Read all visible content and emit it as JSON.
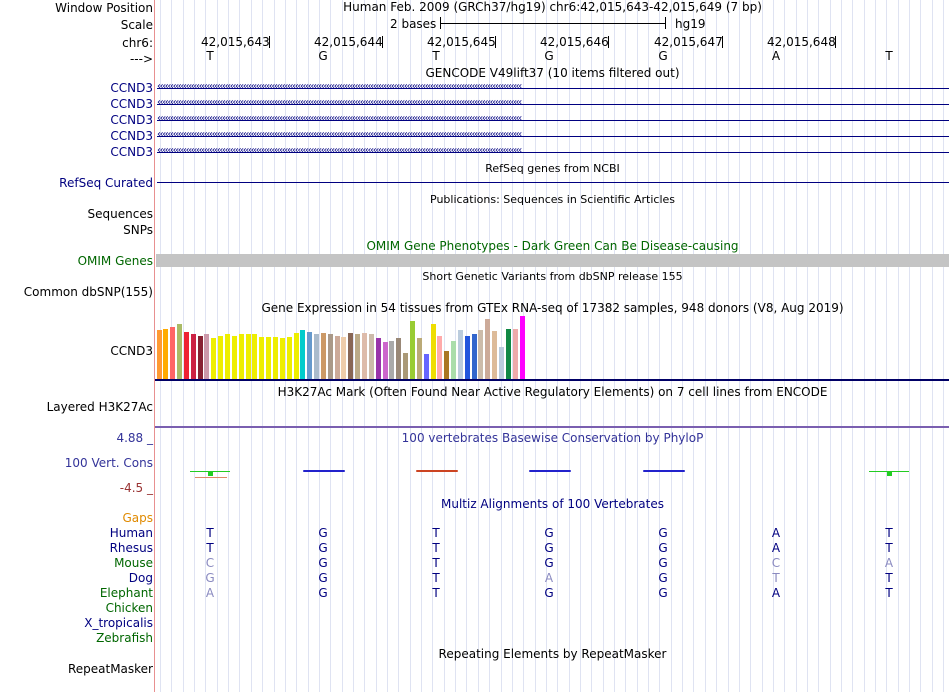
{
  "header": {
    "window_position_label": "Window Position",
    "scale_label": "Scale",
    "chrom_label": "chr6:",
    "strand_label": "--->",
    "assembly_text": "Human Feb. 2009 (GRCh37/hg19)   chr6:42,015,643-42,015,649 (7 bp)",
    "scale_text": "2 bases",
    "db_text": "hg19",
    "positions": [
      "42,015,643",
      "42,015,644",
      "42,015,645",
      "42,015,646",
      "42,015,647",
      "42,015,648"
    ],
    "bases": [
      "T",
      "G",
      "T",
      "G",
      "G",
      "A",
      "T"
    ]
  },
  "gencode": {
    "title": "GENCODE V49lift37 (10 items filtered out)",
    "genes": [
      "CCND3",
      "CCND3",
      "CCND3",
      "CCND3",
      "CCND3"
    ]
  },
  "refseq": {
    "title": "RefSeq genes from NCBI",
    "label": "RefSeq Curated"
  },
  "publications": {
    "title": "Publications: Sequences in Scientific Articles",
    "labels": [
      "Sequences",
      "SNPs"
    ]
  },
  "omim": {
    "title": "OMIM Gene Phenotypes - Dark Green Can Be Disease-causing",
    "label": "OMIM Genes"
  },
  "dbsnp": {
    "title": "Short Genetic Variants from dbSNP release 155",
    "label": "Common dbSNP(155)"
  },
  "gtex": {
    "title": "Gene Expression in 54 tissues from GTEx RNA-seq of 17382 samples, 948 donors (V8, Aug 2019)",
    "label": "CCND3",
    "bars": [
      {
        "v": 0.77,
        "c": "#ff9933"
      },
      {
        "v": 0.8,
        "c": "#ffaa00"
      },
      {
        "v": 0.83,
        "c": "#ff6666"
      },
      {
        "v": 0.87,
        "c": "#aabb66"
      },
      {
        "v": 0.74,
        "c": "#ee2233"
      },
      {
        "v": 0.72,
        "c": "#cc2244"
      },
      {
        "v": 0.69,
        "c": "#882233"
      },
      {
        "v": 0.71,
        "c": "#cc99aa"
      },
      {
        "v": 0.65,
        "c": "#eeee00"
      },
      {
        "v": 0.68,
        "c": "#eeee00"
      },
      {
        "v": 0.71,
        "c": "#eeee00"
      },
      {
        "v": 0.69,
        "c": "#eeee00"
      },
      {
        "v": 0.71,
        "c": "#eeee00"
      },
      {
        "v": 0.71,
        "c": "#eeee00"
      },
      {
        "v": 0.71,
        "c": "#eeee00"
      },
      {
        "v": 0.67,
        "c": "#eeee00"
      },
      {
        "v": 0.66,
        "c": "#eeee00"
      },
      {
        "v": 0.66,
        "c": "#eeee00"
      },
      {
        "v": 0.65,
        "c": "#eeee00"
      },
      {
        "v": 0.67,
        "c": "#eeee00"
      },
      {
        "v": 0.73,
        "c": "#eeee00"
      },
      {
        "v": 0.77,
        "c": "#00cccc"
      },
      {
        "v": 0.75,
        "c": "#6699cc"
      },
      {
        "v": 0.71,
        "c": "#aabbcc"
      },
      {
        "v": 0.73,
        "c": "#cc9966"
      },
      {
        "v": 0.71,
        "c": "#aa9988"
      },
      {
        "v": 0.69,
        "c": "#ccaa99"
      },
      {
        "v": 0.66,
        "c": "#eeccaa"
      },
      {
        "v": 0.73,
        "c": "#886655"
      },
      {
        "v": 0.71,
        "c": "#bbaa88"
      },
      {
        "v": 0.73,
        "c": "#ddbbaa"
      },
      {
        "v": 0.71,
        "c": "#ccbbaa"
      },
      {
        "v": 0.65,
        "c": "#9933aa"
      },
      {
        "v": 0.59,
        "c": "#cc66cc"
      },
      {
        "v": 0.61,
        "c": "#aaaaaa"
      },
      {
        "v": 0.65,
        "c": "#998877"
      },
      {
        "v": 0.41,
        "c": "#aa9977"
      },
      {
        "v": 0.92,
        "c": "#99cc33"
      },
      {
        "v": 0.65,
        "c": "#bbaa77"
      },
      {
        "v": 0.4,
        "c": "#6666ff"
      },
      {
        "v": 0.88,
        "c": "#eedd00"
      },
      {
        "v": 0.68,
        "c": "#ffaaaa"
      },
      {
        "v": 0.45,
        "c": "#aa7722"
      },
      {
        "v": 0.6,
        "c": "#aaddaa"
      },
      {
        "v": 0.77,
        "c": "#bbccdd"
      },
      {
        "v": 0.69,
        "c": "#2255dd"
      },
      {
        "v": 0.72,
        "c": "#3366cc"
      },
      {
        "v": 0.77,
        "c": "#ccbbaa"
      },
      {
        "v": 0.96,
        "c": "#ccaa99"
      },
      {
        "v": 0.76,
        "c": "#ddbb99"
      },
      {
        "v": 0.51,
        "c": "#bbccdd"
      },
      {
        "v": 0.79,
        "c": "#118844"
      },
      {
        "v": 0.79,
        "c": "#eeaaaa"
      },
      {
        "v": 1.0,
        "c": "#ff00ff"
      }
    ]
  },
  "h3k27ac": {
    "title": "H3K27Ac Mark (Often Found Near Active Regulatory Elements) on 7 cell lines from ENCODE",
    "label": "Layered H3K27Ac"
  },
  "conservation": {
    "title": "100 vertebrates Basewise Conservation by PhyloP",
    "label": "100 Vert. Cons",
    "max_label": "4.88 _",
    "min_label": "-4.5 _",
    "scores": [
      {
        "v": 0.5,
        "c": "#22cc22"
      },
      {
        "v": 0.05,
        "c": "#2222cc"
      },
      {
        "v": 0.02,
        "c": "#cc4422"
      },
      {
        "v": 0.06,
        "c": "#2222cc"
      },
      {
        "v": 0.01,
        "c": "#2222cc"
      },
      {
        "v": 0.0,
        "c": "#2222cc"
      },
      {
        "v": 0.55,
        "c": "#22cc22"
      }
    ]
  },
  "multiz": {
    "title": "Multiz Alignments of 100 Vertebrates",
    "gaps_label": "Gaps",
    "species": [
      {
        "name": "Human",
        "color": "#000080",
        "bases": [
          "T",
          "G",
          "T",
          "G",
          "G",
          "A",
          "T"
        ],
        "dim": [
          false,
          false,
          false,
          false,
          false,
          false,
          false
        ]
      },
      {
        "name": "Rhesus",
        "color": "#000080",
        "bases": [
          "T",
          "G",
          "T",
          "G",
          "G",
          "A",
          "T"
        ],
        "dim": [
          false,
          false,
          false,
          false,
          false,
          false,
          false
        ]
      },
      {
        "name": "Mouse",
        "color": "#006600",
        "bases": [
          "C",
          "G",
          "T",
          "G",
          "G",
          "C",
          "A"
        ],
        "dim": [
          true,
          false,
          false,
          false,
          false,
          true,
          true
        ]
      },
      {
        "name": "Dog",
        "color": "#000080",
        "bases": [
          "G",
          "G",
          "T",
          "A",
          "G",
          "T",
          "T"
        ],
        "dim": [
          true,
          false,
          false,
          true,
          false,
          true,
          false
        ]
      },
      {
        "name": "Elephant",
        "color": "#006600",
        "bases": [
          "A",
          "G",
          "T",
          "G",
          "G",
          "A",
          "T"
        ],
        "dim": [
          true,
          false,
          false,
          false,
          false,
          false,
          false
        ]
      },
      {
        "name": "Chicken",
        "color": "#006600",
        "bases": [],
        "dim": []
      },
      {
        "name": "X_tropicalis",
        "color": "#000080",
        "bases": [],
        "dim": []
      },
      {
        "name": "Zebrafish",
        "color": "#006600",
        "bases": [],
        "dim": []
      }
    ]
  },
  "repeatmasker": {
    "title": "Repeating Elements by RepeatMasker",
    "label": "RepeatMasker"
  }
}
